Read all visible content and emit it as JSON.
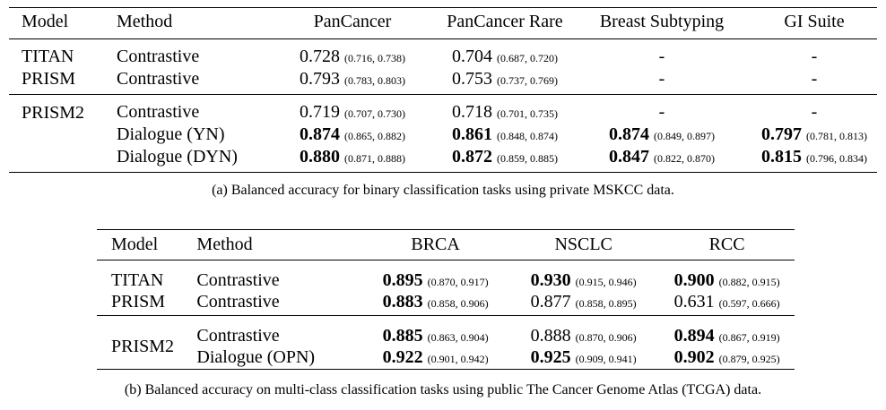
{
  "table_a": {
    "columns": [
      "Model",
      "Method",
      "PanCancer",
      "PanCancer Rare",
      "Breast Subtyping",
      "GI Suite"
    ],
    "rows": [
      {
        "model": "TITAN",
        "method": "Contrastive",
        "cells": [
          {
            "v": "0.728",
            "ci": "(0.716, 0.738)",
            "bold": false
          },
          {
            "v": "0.704",
            "ci": "(0.687, 0.720)",
            "bold": false
          },
          {
            "v": "-",
            "ci": "",
            "bold": false
          },
          {
            "v": "-",
            "ci": "",
            "bold": false
          }
        ]
      },
      {
        "model": "PRISM",
        "method": "Contrastive",
        "cells": [
          {
            "v": "0.793",
            "ci": "(0.783, 0.803)",
            "bold": false
          },
          {
            "v": "0.753",
            "ci": "(0.737, 0.769)",
            "bold": false
          },
          {
            "v": "-",
            "ci": "",
            "bold": false
          },
          {
            "v": "-",
            "ci": "",
            "bold": false
          }
        ]
      },
      {
        "model": "PRISM2",
        "method": "Contrastive",
        "cells": [
          {
            "v": "0.719",
            "ci": "(0.707, 0.730)",
            "bold": false
          },
          {
            "v": "0.718",
            "ci": "(0.701, 0.735)",
            "bold": false
          },
          {
            "v": "-",
            "ci": "",
            "bold": false
          },
          {
            "v": "-",
            "ci": "",
            "bold": false
          }
        ]
      },
      {
        "model": "",
        "method": "Dialogue (YN)",
        "cells": [
          {
            "v": "0.874",
            "ci": "(0.865, 0.882)",
            "bold": true
          },
          {
            "v": "0.861",
            "ci": "(0.848, 0.874)",
            "bold": true
          },
          {
            "v": "0.874",
            "ci": "(0.849, 0.897)",
            "bold": true
          },
          {
            "v": "0.797",
            "ci": "(0.781, 0.813)",
            "bold": true
          }
        ]
      },
      {
        "model": "",
        "method": "Dialogue (DYN)",
        "cells": [
          {
            "v": "0.880",
            "ci": "(0.871, 0.888)",
            "bold": true
          },
          {
            "v": "0.872",
            "ci": "(0.859, 0.885)",
            "bold": true
          },
          {
            "v": "0.847",
            "ci": "(0.822, 0.870)",
            "bold": true
          },
          {
            "v": "0.815",
            "ci": "(0.796, 0.834)",
            "bold": true
          }
        ]
      }
    ],
    "caption": "(a) Balanced accuracy for binary classification tasks using private MSKCC data."
  },
  "table_b": {
    "columns": [
      "Model",
      "Method",
      "BRCA",
      "NSCLC",
      "RCC"
    ],
    "rows": [
      {
        "model": "TITAN",
        "method": "Contrastive",
        "cells": [
          {
            "v": "0.895",
            "ci": "(0.870, 0.917)",
            "bold": true
          },
          {
            "v": "0.930",
            "ci": "(0.915, 0.946)",
            "bold": true
          },
          {
            "v": "0.900",
            "ci": "(0.882, 0.915)",
            "bold": true
          }
        ]
      },
      {
        "model": "PRISM",
        "method": "Contrastive",
        "cells": [
          {
            "v": "0.883",
            "ci": "(0.858, 0.906)",
            "bold": true
          },
          {
            "v": "0.877",
            "ci": "(0.858, 0.895)",
            "bold": false
          },
          {
            "v": "0.631",
            "ci": "(0.597, 0.666)",
            "bold": false
          }
        ]
      },
      {
        "model": "PRISM2",
        "method": "Contrastive",
        "cells": [
          {
            "v": "0.885",
            "ci": "(0.863, 0.904)",
            "bold": true
          },
          {
            "v": "0.888",
            "ci": "(0.870, 0.906)",
            "bold": false
          },
          {
            "v": "0.894",
            "ci": "(0.867, 0.919)",
            "bold": true
          }
        ]
      },
      {
        "model": "",
        "method": "Dialogue (OPN)",
        "cells": [
          {
            "v": "0.922",
            "ci": "(0.901, 0.942)",
            "bold": true
          },
          {
            "v": "0.925",
            "ci": "(0.909, 0.941)",
            "bold": true
          },
          {
            "v": "0.902",
            "ci": "(0.879, 0.925)",
            "bold": true
          }
        ]
      }
    ],
    "caption": "(b) Balanced accuracy on multi-class classification tasks using public The Cancer Genome Atlas (TCGA) data."
  }
}
